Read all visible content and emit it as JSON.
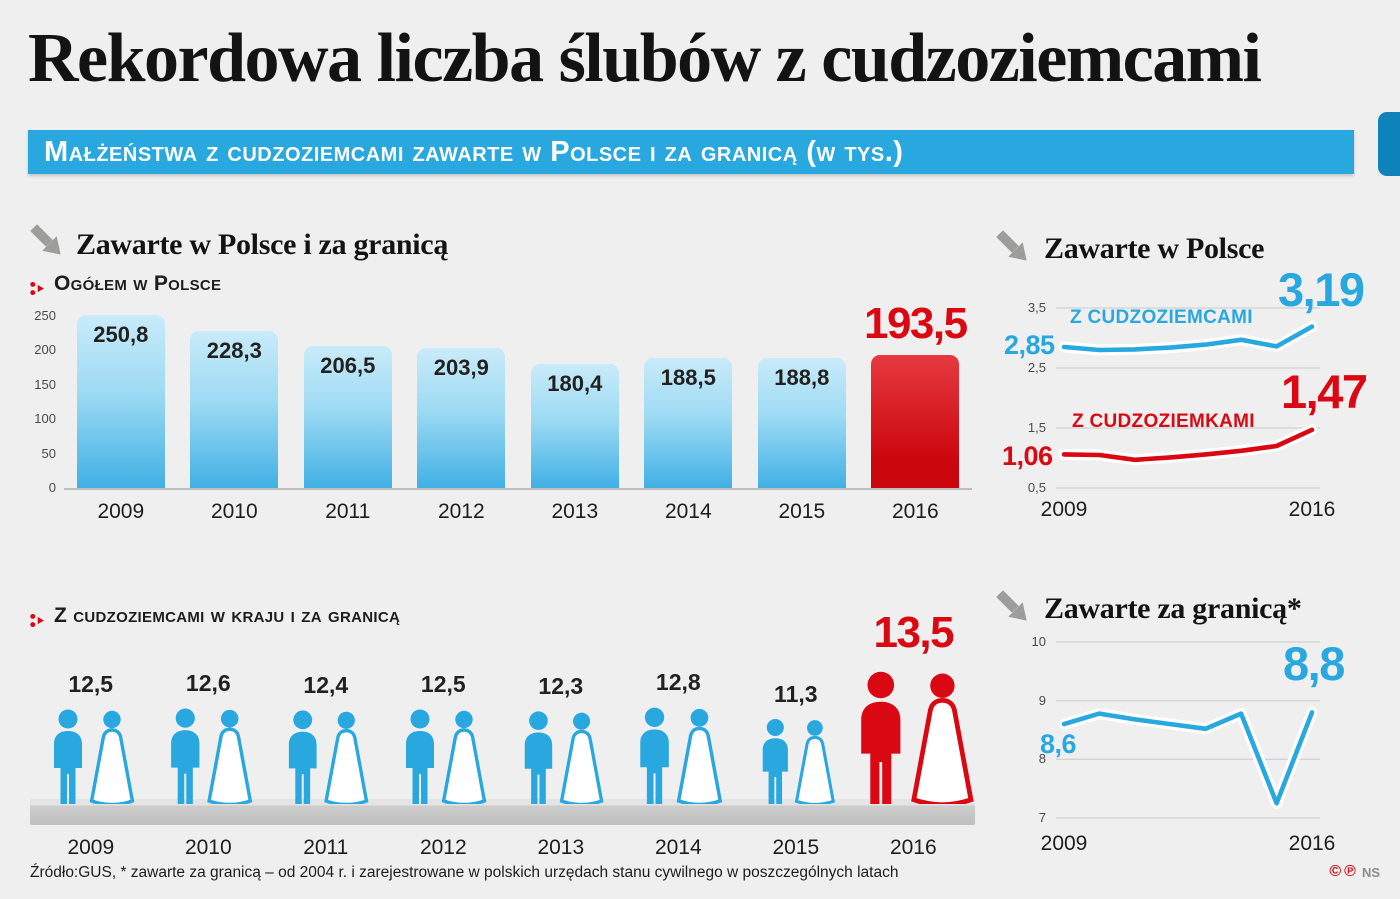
{
  "title": "Rekordowa liczba ślubów z cudzoziemcami",
  "banner": "Małżeństwa z cudzoziemcami zawarte w Polsce i za granicą (w tys.)",
  "colors": {
    "blue": "#29a8e0",
    "red": "#da0812",
    "dark": "#1d1d1b",
    "gray": "#9d9d9c"
  },
  "icons": {
    "arrow": "arrow-down-right-icon",
    "bullet": "red-bullet-icon",
    "couple": "bride-and-groom-icon"
  },
  "sections": {
    "bars": {
      "heading": "Zawarte w Polsce i za granicą",
      "sublabel": "Ogółem w Polsce"
    },
    "poland_lines": {
      "heading": "Zawarte w Polsce"
    },
    "couples": {
      "sublabel": "Z cudzoziemcami w kraju i za granicą"
    },
    "abroad_line": {
      "heading": "Zawarte za granicą*"
    }
  },
  "footer": {
    "source": "Źródło:GUS, * zawarte za granicą – od 2004 r. i zarejestrowane w polskich urzędach stanu cywilnego w poszczególnych latach",
    "copyright": "©",
    "phono": "℗",
    "initials": "NS"
  },
  "chart_data": [
    {
      "id": "bars_total",
      "type": "bar",
      "title": "Zawarte w Polsce i za granicą — ogółem w Polsce (w tys.)",
      "categories": [
        "2009",
        "2010",
        "2011",
        "2012",
        "2013",
        "2014",
        "2015",
        "2016"
      ],
      "values": [
        250.8,
        228.3,
        206.5,
        203.9,
        180.4,
        188.5,
        188.8,
        193.5
      ],
      "value_labels": [
        "250,8",
        "228,3",
        "206,5",
        "203,9",
        "180,4",
        "188,5",
        "188,8",
        "193,5"
      ],
      "highlight_index": 7,
      "ylim": [
        0,
        250
      ],
      "yticks": [
        0,
        50,
        100,
        150,
        200,
        250
      ],
      "ytick_labels": [
        "0",
        "50",
        "100",
        "150",
        "200",
        "250"
      ]
    },
    {
      "id": "line_poland",
      "type": "line",
      "title": "Zawarte w Polsce (w tys.)",
      "x": [
        2009,
        2010,
        2011,
        2012,
        2013,
        2014,
        2015,
        2016
      ],
      "series": [
        {
          "name": "Z CUDZOZIEMCAMI",
          "color": "blue",
          "values": [
            2.85,
            2.8,
            2.81,
            2.84,
            2.89,
            2.97,
            2.86,
            3.19
          ],
          "first_label": "2,85",
          "last_label": "3,19"
        },
        {
          "name": "Z CUDZOZIEMKAMI",
          "color": "red",
          "values": [
            1.06,
            1.05,
            0.97,
            1.01,
            1.06,
            1.12,
            1.2,
            1.47
          ],
          "first_label": "1,06",
          "last_label": "1,47"
        }
      ],
      "ylim": [
        0.5,
        3.5
      ],
      "yticks": [
        3.5,
        2.5,
        1.5,
        0.5
      ],
      "ytick_labels": [
        "3,5",
        "2,5",
        "1,5",
        "0,5"
      ],
      "xtick_labels": [
        "2009",
        "2016"
      ],
      "grid": true,
      "legend_position": "inline"
    },
    {
      "id": "couples",
      "type": "pictogram",
      "title": "Z cudzoziemcami w kraju i za granicą (w tys.)",
      "categories": [
        "2009",
        "2010",
        "2011",
        "2012",
        "2013",
        "2014",
        "2015",
        "2016"
      ],
      "values": [
        12.5,
        12.6,
        12.4,
        12.5,
        12.3,
        12.8,
        11.3,
        13.5
      ],
      "value_labels": [
        "12,5",
        "12,6",
        "12,4",
        "12,5",
        "12,3",
        "12,8",
        "11,3",
        "13,5"
      ],
      "highlight_index": 7
    },
    {
      "id": "line_abroad",
      "type": "line",
      "title": "Zawarte za granicą* (w tys.)",
      "x": [
        2009,
        2010,
        2011,
        2012,
        2013,
        2014,
        2015,
        2016
      ],
      "series": [
        {
          "name": "",
          "color": "blue",
          "values": [
            8.6,
            8.78,
            8.68,
            8.6,
            8.52,
            8.78,
            7.25,
            8.8
          ],
          "first_label": "8,6",
          "last_label": "8,8"
        }
      ],
      "ylim": [
        7,
        10
      ],
      "yticks": [
        10,
        9,
        8,
        7
      ],
      "ytick_labels": [
        "10",
        "9",
        "8",
        "7"
      ],
      "xtick_labels": [
        "2009",
        "2016"
      ],
      "grid": true
    }
  ]
}
